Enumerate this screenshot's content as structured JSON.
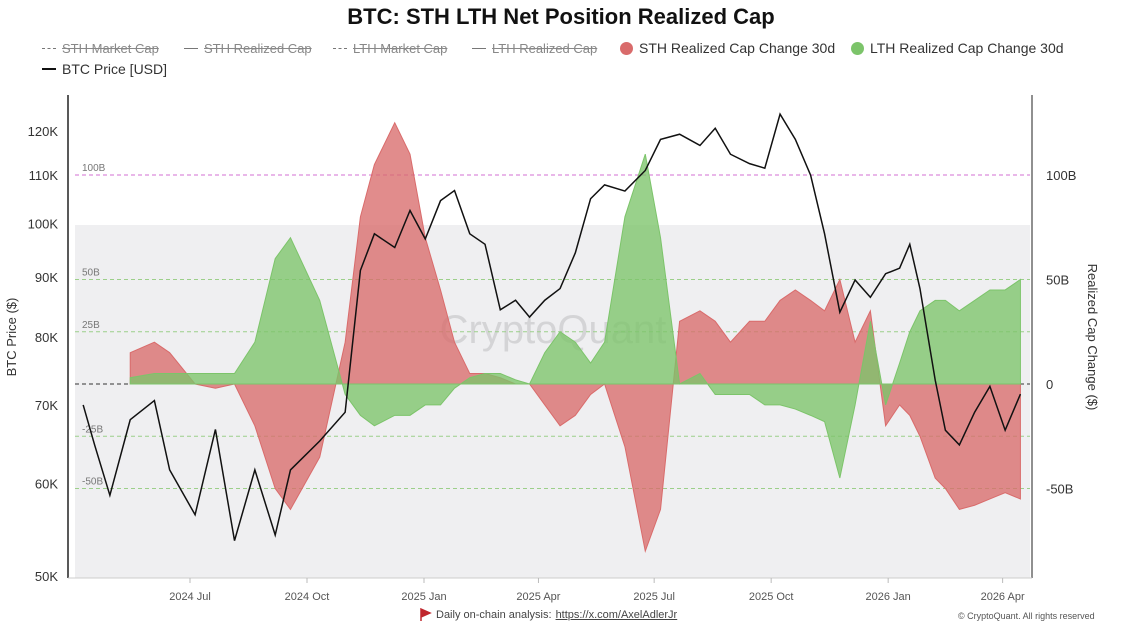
{
  "chart_data": {
    "type": "area",
    "title": "BTC: STH LTH Net Position Realized Cap",
    "ylabel_left": "BTC Price ($)",
    "ylabel_right": "Realized Cap Change ($)",
    "left_axis": {
      "scale": "log",
      "range": [
        50000,
        130000
      ],
      "ticks": [
        "50K",
        "60K",
        "70K",
        "80K",
        "90K",
        "100K",
        "110K",
        "120K"
      ],
      "tick_values": [
        50000,
        60000,
        70000,
        80000,
        90000,
        100000,
        110000,
        120000
      ]
    },
    "right_axis": {
      "unit": "B",
      "ticks": [
        "-50B",
        "0",
        "50B",
        "100B"
      ],
      "tick_values": [
        -50,
        0,
        50,
        100
      ]
    },
    "reference_lines": [
      {
        "label": "100B",
        "value": 100,
        "color": "#d36fd3"
      },
      {
        "label": "50B",
        "value": 50,
        "color": "#9ccf8a"
      },
      {
        "label": "25B",
        "value": 25,
        "color": "#9ccf8a"
      },
      {
        "label": "",
        "value": 0,
        "color": "#333333"
      },
      {
        "label": "-25B",
        "value": -25,
        "color": "#9ccf8a"
      },
      {
        "label": "-50B",
        "value": -50,
        "color": "#9ccf8a"
      }
    ],
    "x_ticks": [
      "2024 Jul",
      "2024 Oct",
      "2025 Jan",
      "2025 Apr",
      "2025 Jul",
      "2025 Oct",
      "2026 Jan",
      "2026 Apr"
    ],
    "x_tick_dates": [
      "2024-07-01",
      "2024-10-01",
      "2025-01-01",
      "2025-04-01",
      "2025-07-01",
      "2025-10-01",
      "2026-01-01",
      "2026-04-01"
    ],
    "legend": [
      {
        "name": "STH Market Cap",
        "style": "dashdot",
        "hidden": true
      },
      {
        "name": "STH Realized Cap",
        "style": "line",
        "hidden": true
      },
      {
        "name": "LTH Market Cap",
        "style": "dash",
        "hidden": true
      },
      {
        "name": "LTH Realized Cap",
        "style": "line",
        "hidden": true
      },
      {
        "name": "STH Realized Cap Change 30d",
        "style": "dot",
        "color": "#d96b6b",
        "hidden": false
      },
      {
        "name": "LTH Realized Cap Change 30d",
        "style": "dot",
        "color": "#7cc46a",
        "hidden": false
      },
      {
        "name": "BTC Price [USD]",
        "style": "line",
        "color": "#111111",
        "hidden": false
      }
    ],
    "x": [
      "2024-04-08",
      "2024-04-17",
      "2024-04-29",
      "2024-05-15",
      "2024-06-03",
      "2024-06-15",
      "2024-07-05",
      "2024-07-21",
      "2024-08-05",
      "2024-08-21",
      "2024-09-06",
      "2024-09-18",
      "2024-10-11",
      "2024-10-31",
      "2024-11-12",
      "2024-11-23",
      "2024-12-09",
      "2024-12-21",
      "2025-01-02",
      "2025-01-14",
      "2025-01-25",
      "2025-02-06",
      "2025-02-18",
      "2025-03-02",
      "2025-03-14",
      "2025-03-25",
      "2025-04-06",
      "2025-04-18",
      "2025-04-30",
      "2025-05-12",
      "2025-05-23",
      "2025-06-08",
      "2025-06-24",
      "2025-07-06",
      "2025-07-21",
      "2025-08-06",
      "2025-08-18",
      "2025-08-30",
      "2025-09-14",
      "2025-09-26",
      "2025-10-08",
      "2025-10-20",
      "2025-11-01",
      "2025-11-12",
      "2025-11-24",
      "2025-12-06",
      "2025-12-18",
      "2025-12-30",
      "2026-01-10",
      "2026-01-18",
      "2026-01-26",
      "2026-02-07",
      "2026-02-15",
      "2026-02-26",
      "2026-03-10",
      "2026-03-22",
      "2026-04-03",
      "2026-04-15"
    ],
    "series": [
      {
        "name": "BTC Price [USD]",
        "axis": "left",
        "color": "#111111",
        "values": [
          70000,
          64700,
          58600,
          68000,
          70600,
          61600,
          56400,
          66700,
          53600,
          61600,
          54200,
          61600,
          65200,
          69000,
          91200,
          98000,
          95400,
          102600,
          97000,
          104600,
          106700,
          98000,
          96000,
          84400,
          86000,
          83200,
          86000,
          88000,
          94400,
          105000,
          107900,
          106600,
          111000,
          118000,
          119200,
          116600,
          120600,
          114600,
          112500,
          111500,
          124000,
          118000,
          110000,
          98000,
          84000,
          89500,
          86500,
          90600,
          91600,
          96000,
          88000,
          73500,
          66600,
          64700,
          69000,
          72600,
          66600,
          71500
        ]
      },
      {
        "name": "STH Realized Cap Change 30d",
        "axis": "right",
        "color": "#d96b6b",
        "values": [
          null,
          null,
          null,
          15,
          20,
          15,
          0,
          -2,
          0,
          -20,
          -50,
          -60,
          -35,
          20,
          80,
          105,
          125,
          110,
          70,
          45,
          20,
          5,
          5,
          3,
          0,
          0,
          -10,
          -20,
          -15,
          -5,
          0,
          -30,
          -80,
          -60,
          30,
          35,
          30,
          20,
          30,
          30,
          40,
          45,
          40,
          35,
          50,
          20,
          35,
          -20,
          -10,
          -15,
          -25,
          -45,
          -50,
          -60,
          -58,
          -55,
          -52,
          -55
        ]
      },
      {
        "name": "LTH Realized Cap Change 30d",
        "axis": "right",
        "color": "#7cc46a",
        "values": [
          null,
          null,
          null,
          3,
          5,
          5,
          5,
          5,
          5,
          20,
          60,
          70,
          40,
          -5,
          -15,
          -20,
          -15,
          -15,
          -10,
          -10,
          -2,
          3,
          5,
          5,
          2,
          0,
          15,
          25,
          20,
          10,
          20,
          80,
          110,
          70,
          0,
          5,
          -5,
          -5,
          -5,
          -10,
          -10,
          -12,
          -15,
          -18,
          -45,
          -10,
          30,
          -10,
          10,
          25,
          35,
          40,
          40,
          35,
          40,
          45,
          45,
          50
        ]
      }
    ],
    "watermark": "CryptoQuant"
  },
  "footer": {
    "text": "Daily on-chain analysis:",
    "link": "https://x.com/AxelAdlerJr",
    "copyright": "© CryptoQuant. All rights reserved"
  }
}
